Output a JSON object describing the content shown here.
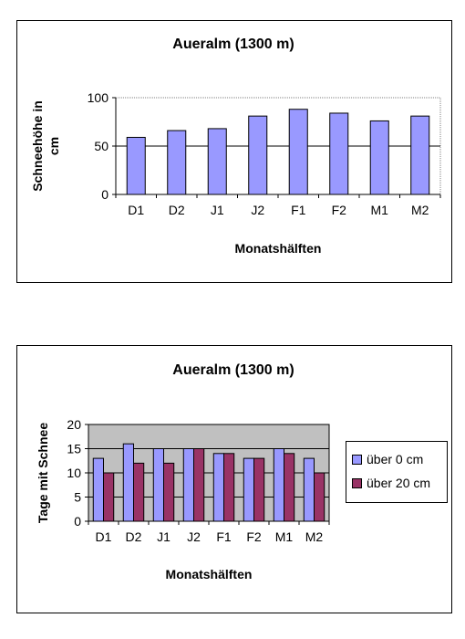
{
  "chart_data": [
    {
      "type": "bar",
      "title": "Aueralm (1300 m)",
      "xlabel": "Monatshälften",
      "ylabel": "Schneehöhe in cm",
      "ylabel_lines": [
        "Schneehöhe in",
        "cm"
      ],
      "categories": [
        "D1",
        "D2",
        "J1",
        "J2",
        "F1",
        "F2",
        "M1",
        "M2"
      ],
      "series": [
        {
          "values": [
            59,
            66,
            68,
            81,
            88,
            84,
            76,
            81
          ],
          "color": "#9999ff"
        }
      ],
      "ylim": [
        0,
        100
      ],
      "yticks": [
        0,
        50,
        100
      ],
      "grid": true,
      "legend": false
    },
    {
      "type": "bar",
      "title": "Aueralm (1300 m)",
      "xlabel": "Monatshälften",
      "ylabel": "Tage mit Schnee",
      "categories": [
        "D1",
        "D2",
        "J1",
        "J2",
        "F1",
        "F2",
        "M1",
        "M2"
      ],
      "series": [
        {
          "name": "über 0 cm",
          "values": [
            13,
            16,
            15,
            15,
            14,
            13,
            15,
            13
          ],
          "color": "#9999ff"
        },
        {
          "name": "über 20 cm",
          "values": [
            10,
            12,
            12,
            15,
            14,
            13,
            14,
            10
          ],
          "color": "#993366"
        }
      ],
      "ylim": [
        0,
        20
      ],
      "yticks": [
        0,
        5,
        10,
        15,
        20
      ],
      "grid": true,
      "legend": "right"
    }
  ]
}
